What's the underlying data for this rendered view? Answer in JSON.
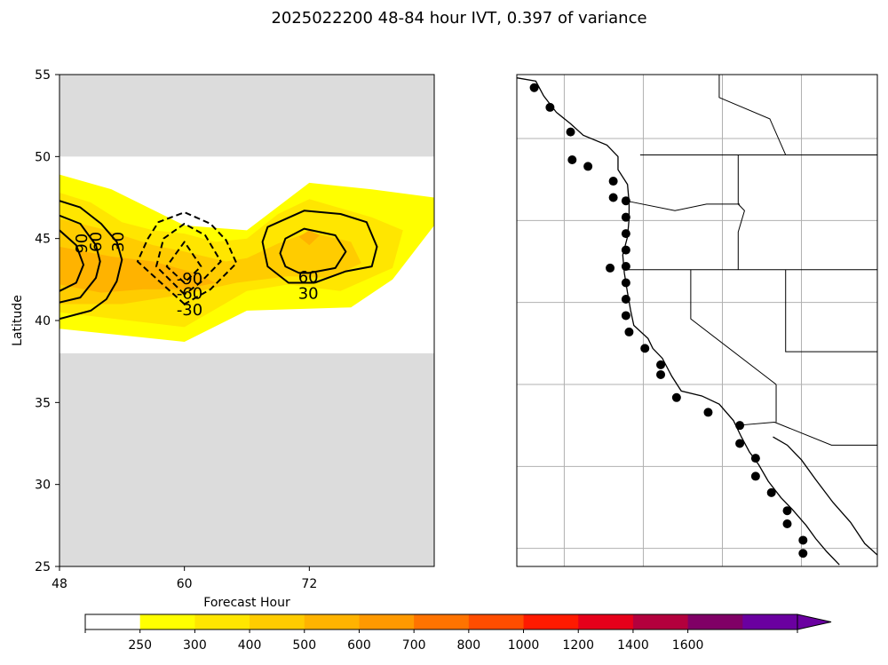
{
  "figure": {
    "title": "2025022200 48-84 hour IVT, 0.397 of variance"
  },
  "chart_data": [
    {
      "type": "contour",
      "panel": "left",
      "xlabel": "Forecast Hour",
      "ylabel": "Latitude",
      "xlim": [
        48,
        84
      ],
      "ylim": [
        25,
        55
      ],
      "xticks": [
        48,
        60,
        72
      ],
      "yticks": [
        25,
        30,
        35,
        40,
        45,
        50,
        55
      ],
      "grey_mask_latitudes": [
        [
          25,
          38
        ],
        [
          50,
          55
        ]
      ],
      "filled_levels": [
        {
          "level": 250,
          "color": "#ffff00",
          "outline": [
            [
              48,
              48.9
            ],
            [
              53,
              48
            ],
            [
              60,
              45.8
            ],
            [
              66,
              45.5
            ],
            [
              72,
              48.4
            ],
            [
              78,
              48
            ],
            [
              84,
              47.5
            ],
            [
              84,
              45.8
            ],
            [
              80,
              42.5
            ],
            [
              76,
              40.8
            ],
            [
              66,
              40.6
            ],
            [
              60,
              38.7
            ],
            [
              48,
              39.5
            ]
          ]
        },
        {
          "level": 300,
          "color": "#ffe600",
          "outline": [
            [
              48,
              47.8
            ],
            [
              51,
              47.2
            ],
            [
              54,
              46
            ],
            [
              57,
              45.5
            ],
            [
              60,
              45.3
            ],
            [
              63,
              44.8
            ],
            [
              66,
              45
            ],
            [
              69,
              46.5
            ],
            [
              72,
              47.4
            ],
            [
              78,
              46.3
            ],
            [
              81,
              45.5
            ],
            [
              80,
              43.2
            ],
            [
              75,
              41.8
            ],
            [
              70,
              42.2
            ],
            [
              66,
              41.8
            ],
            [
              60,
              39.6
            ],
            [
              48,
              40.5
            ]
          ]
        },
        {
          "level": 400,
          "color": "#ffcc00",
          "outline": [
            [
              48,
              46.2
            ],
            [
              52,
              45.6
            ],
            [
              57,
              44.6
            ],
            [
              60,
              44.2
            ],
            [
              64,
              43.6
            ],
            [
              66,
              43.8
            ],
            [
              69,
              44.7
            ],
            [
              72,
              45.4
            ],
            [
              76,
              44.8
            ],
            [
              77,
              43.5
            ],
            [
              74,
              42.6
            ],
            [
              70,
              42.7
            ],
            [
              65,
              42.3
            ],
            [
              60,
              41.6
            ],
            [
              54,
              41
            ],
            [
              48,
              41
            ]
          ]
        },
        {
          "level": 500,
          "color": "#ffb300",
          "outline": [
            [
              48,
              44.5
            ],
            [
              53,
              43.9
            ],
            [
              57,
              43.6
            ],
            [
              61,
              42.9
            ],
            [
              63,
              42.3
            ],
            [
              60,
              41.9
            ],
            [
              56,
              41.9
            ],
            [
              52,
              41.7
            ],
            [
              48,
              42.2
            ]
          ]
        },
        {
          "level": 500,
          "color": "#ffb300",
          "outline": [
            [
              71,
              45.1
            ],
            [
              72,
              45.5
            ],
            [
              73,
              45.2
            ],
            [
              72,
              44.6
            ]
          ]
        }
      ],
      "contour_lines": [
        {
          "label": "30",
          "style": "solid",
          "points": [
            [
              48,
              47.3
            ],
            [
              50,
              46.9
            ],
            [
              52,
              45.9
            ],
            [
              53.5,
              44.8
            ],
            [
              54,
              43.7
            ],
            [
              53.5,
              42.4
            ],
            [
              52.5,
              41.3
            ],
            [
              51,
              40.6
            ],
            [
              48,
              40.1
            ]
          ]
        },
        {
          "label": "60",
          "style": "solid",
          "points": [
            [
              48,
              46.4
            ],
            [
              50,
              45.9
            ],
            [
              51.5,
              44.6
            ],
            [
              51.9,
              43.6
            ],
            [
              51.5,
              42.6
            ],
            [
              50,
              41.4
            ],
            [
              48,
              41.1
            ]
          ]
        },
        {
          "label": "90",
          "style": "solid",
          "points": [
            [
              48,
              45.5
            ],
            [
              49.6,
              44.6
            ],
            [
              50.3,
              43.4
            ],
            [
              49.6,
              42.3
            ],
            [
              48,
              41.8
            ]
          ]
        },
        {
          "label": "30",
          "style": "solid",
          "points": [
            [
              72.5,
              42.3
            ],
            [
              75.5,
              43
            ],
            [
              78,
              43.3
            ],
            [
              78.5,
              44.5
            ],
            [
              77.5,
              46
            ],
            [
              75,
              46.5
            ],
            [
              71.5,
              46.7
            ],
            [
              68,
              45.7
            ],
            [
              67.5,
              44.8
            ],
            [
              68,
              43.3
            ],
            [
              70,
              42.3
            ],
            [
              72.5,
              42.3
            ]
          ]
        },
        {
          "label": "60",
          "style": "solid",
          "points": [
            [
              72,
              42.9
            ],
            [
              74.5,
              43.2
            ],
            [
              75.5,
              44.2
            ],
            [
              74.5,
              45.2
            ],
            [
              71.5,
              45.6
            ],
            [
              69.7,
              45
            ],
            [
              69.2,
              44.1
            ],
            [
              69.7,
              43.3
            ],
            [
              71,
              42.9
            ],
            [
              72,
              42.9
            ]
          ]
        },
        {
          "label": "-30",
          "style": "dashed",
          "points": [
            [
              60,
              41
            ],
            [
              55.5,
              43.6
            ],
            [
              56.5,
              45
            ],
            [
              57.5,
              46
            ],
            [
              60,
              46.6
            ],
            [
              62.5,
              45.9
            ],
            [
              64,
              44.9
            ],
            [
              65,
              43.5
            ],
            [
              62.5,
              41.9
            ],
            [
              60,
              41
            ]
          ]
        },
        {
          "label": "-60",
          "style": "dashed",
          "points": [
            [
              60,
              41.6
            ],
            [
              57.3,
              43.3
            ],
            [
              58,
              45
            ],
            [
              60,
              45.9
            ],
            [
              62,
              45.2
            ],
            [
              63.5,
              43.6
            ],
            [
              61.5,
              42.3
            ],
            [
              60,
              41.6
            ]
          ]
        },
        {
          "label": "-90",
          "style": "dashed",
          "points": [
            [
              60,
              42.3
            ],
            [
              58.3,
              43.3
            ],
            [
              60,
              44.8
            ],
            [
              61.6,
              43.3
            ],
            [
              60,
              42.3
            ]
          ]
        }
      ],
      "contour_labels": [
        {
          "text": "30",
          "x": 53.7,
          "y": 44.8,
          "rotate": -90
        },
        {
          "text": "60",
          "x": 51.6,
          "y": 44.8,
          "rotate": -90
        },
        {
          "text": "90",
          "x": 50.2,
          "y": 44.7,
          "rotate": -90
        },
        {
          "text": "60",
          "x": 71.9,
          "y": 42.6,
          "rotate": 0
        },
        {
          "text": "30",
          "x": 71.9,
          "y": 41.6,
          "rotate": 0
        },
        {
          "text": "-90",
          "x": 60.5,
          "y": 42.5,
          "rotate": 0
        },
        {
          "text": "-60",
          "x": 60.5,
          "y": 41.6,
          "rotate": 0
        },
        {
          "text": "-30",
          "x": 60.5,
          "y": 40.6,
          "rotate": 0
        }
      ]
    },
    {
      "type": "map",
      "panel": "right",
      "extent_lon": [
        -131,
        -108.2
      ],
      "extent_lat": [
        23.9,
        53.9
      ],
      "gridlines_lon": [
        -128,
        -123,
        -118,
        -113
      ],
      "gridlines_lat": [
        25,
        30,
        35,
        40,
        45,
        50
      ],
      "station_points": [
        [
          -129.9,
          53.1
        ],
        [
          -128.9,
          51.9
        ],
        [
          -127.6,
          50.4
        ],
        [
          -127.5,
          48.7
        ],
        [
          -126.5,
          48.3
        ],
        [
          -124.9,
          47.4
        ],
        [
          -124.9,
          46.4
        ],
        [
          -124.1,
          46.2
        ],
        [
          -124.1,
          45.2
        ],
        [
          -124.1,
          44.2
        ],
        [
          -124.1,
          43.2
        ],
        [
          -124.1,
          42.2
        ],
        [
          -125.1,
          42.1
        ],
        [
          -124.1,
          41.2
        ],
        [
          -124.1,
          40.2
        ],
        [
          -124.1,
          39.2
        ],
        [
          -123.9,
          38.2
        ],
        [
          -122.9,
          37.2
        ],
        [
          -121.9,
          36.2
        ],
        [
          -121.9,
          35.6
        ],
        [
          -120.9,
          34.2
        ],
        [
          -118.9,
          33.3
        ],
        [
          -116.9,
          32.5
        ],
        [
          -116.9,
          31.4
        ],
        [
          -115.9,
          30.5
        ],
        [
          -115.9,
          29.4
        ],
        [
          -114.9,
          28.4
        ],
        [
          -113.9,
          27.3
        ],
        [
          -113.9,
          26.5
        ],
        [
          -112.9,
          25.5
        ],
        [
          -112.9,
          24.7
        ]
      ]
    }
  ],
  "colorbar": {
    "levels": [
      "250",
      "300",
      "400",
      "500",
      "600",
      "700",
      "800",
      "1000",
      "1200",
      "1400",
      "1600"
    ],
    "colors": [
      "#ffffff",
      "#ffff00",
      "#ffe600",
      "#ffcc00",
      "#ffb300",
      "#ff9900",
      "#ff7300",
      "#ff4d00",
      "#ff1a00",
      "#e6001a",
      "#b3003d",
      "#800066",
      "#6a00a0"
    ],
    "extend": "max"
  }
}
